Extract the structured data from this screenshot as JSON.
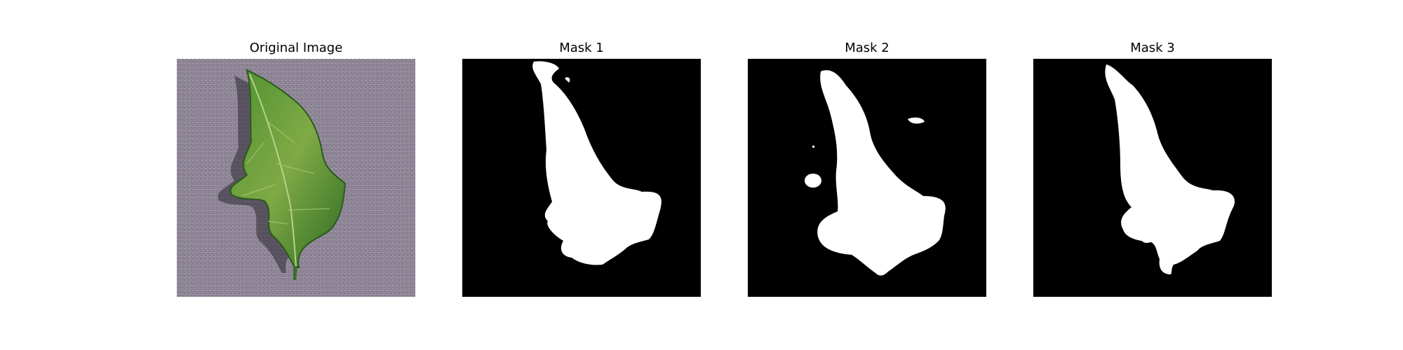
{
  "figure": {
    "panels": [
      {
        "title": "Original Image",
        "kind": "photo"
      },
      {
        "title": "Mask 1",
        "kind": "mask"
      },
      {
        "title": "Mask 2",
        "kind": "mask"
      },
      {
        "title": "Mask 3",
        "kind": "mask"
      }
    ]
  },
  "colors": {
    "photo_background": "#8d8495",
    "leaf_green": "#3f7a2a",
    "leaf_highlight": "#8fb54a",
    "mask_background": "#000000",
    "mask_foreground": "#ffffff"
  }
}
